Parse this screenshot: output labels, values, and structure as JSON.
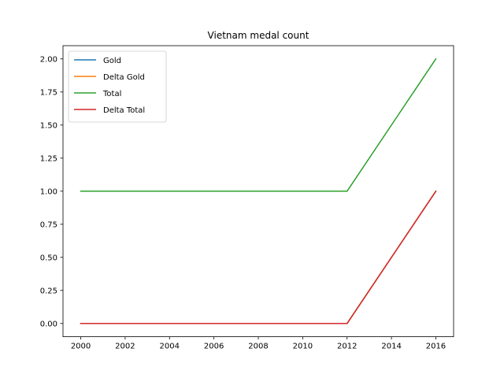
{
  "chart_data": {
    "type": "line",
    "title": "Vietnam medal count",
    "xlabel": "",
    "ylabel": "",
    "x": [
      2000,
      2004,
      2008,
      2012,
      2016
    ],
    "xlim": [
      1999.2,
      2016.8
    ],
    "ylim": [
      -0.1,
      2.1
    ],
    "xticks": [
      2000,
      2002,
      2004,
      2006,
      2008,
      2010,
      2012,
      2014,
      2016
    ],
    "xtick_labels": [
      "2000",
      "2002",
      "2004",
      "2006",
      "2008",
      "2010",
      "2012",
      "2014",
      "2016"
    ],
    "yticks": [
      0.0,
      0.25,
      0.5,
      0.75,
      1.0,
      1.25,
      1.5,
      1.75,
      2.0
    ],
    "ytick_labels": [
      "0.00",
      "0.25",
      "0.50",
      "0.75",
      "1.00",
      "1.25",
      "1.50",
      "1.75",
      "2.00"
    ],
    "grid": false,
    "legend_position": "top-left",
    "series": [
      {
        "name": "Gold",
        "color": "#1f77b4",
        "values": [
          0,
          0,
          0,
          0,
          1
        ]
      },
      {
        "name": "Delta Gold",
        "color": "#ff7f0e",
        "values": [
          0,
          0,
          0,
          0,
          1
        ]
      },
      {
        "name": "Total",
        "color": "#2ca02c",
        "values": [
          1,
          1,
          1,
          1,
          2
        ]
      },
      {
        "name": "Delta Total",
        "color": "#d62728",
        "values": [
          0,
          0,
          0,
          0,
          1
        ]
      }
    ]
  }
}
